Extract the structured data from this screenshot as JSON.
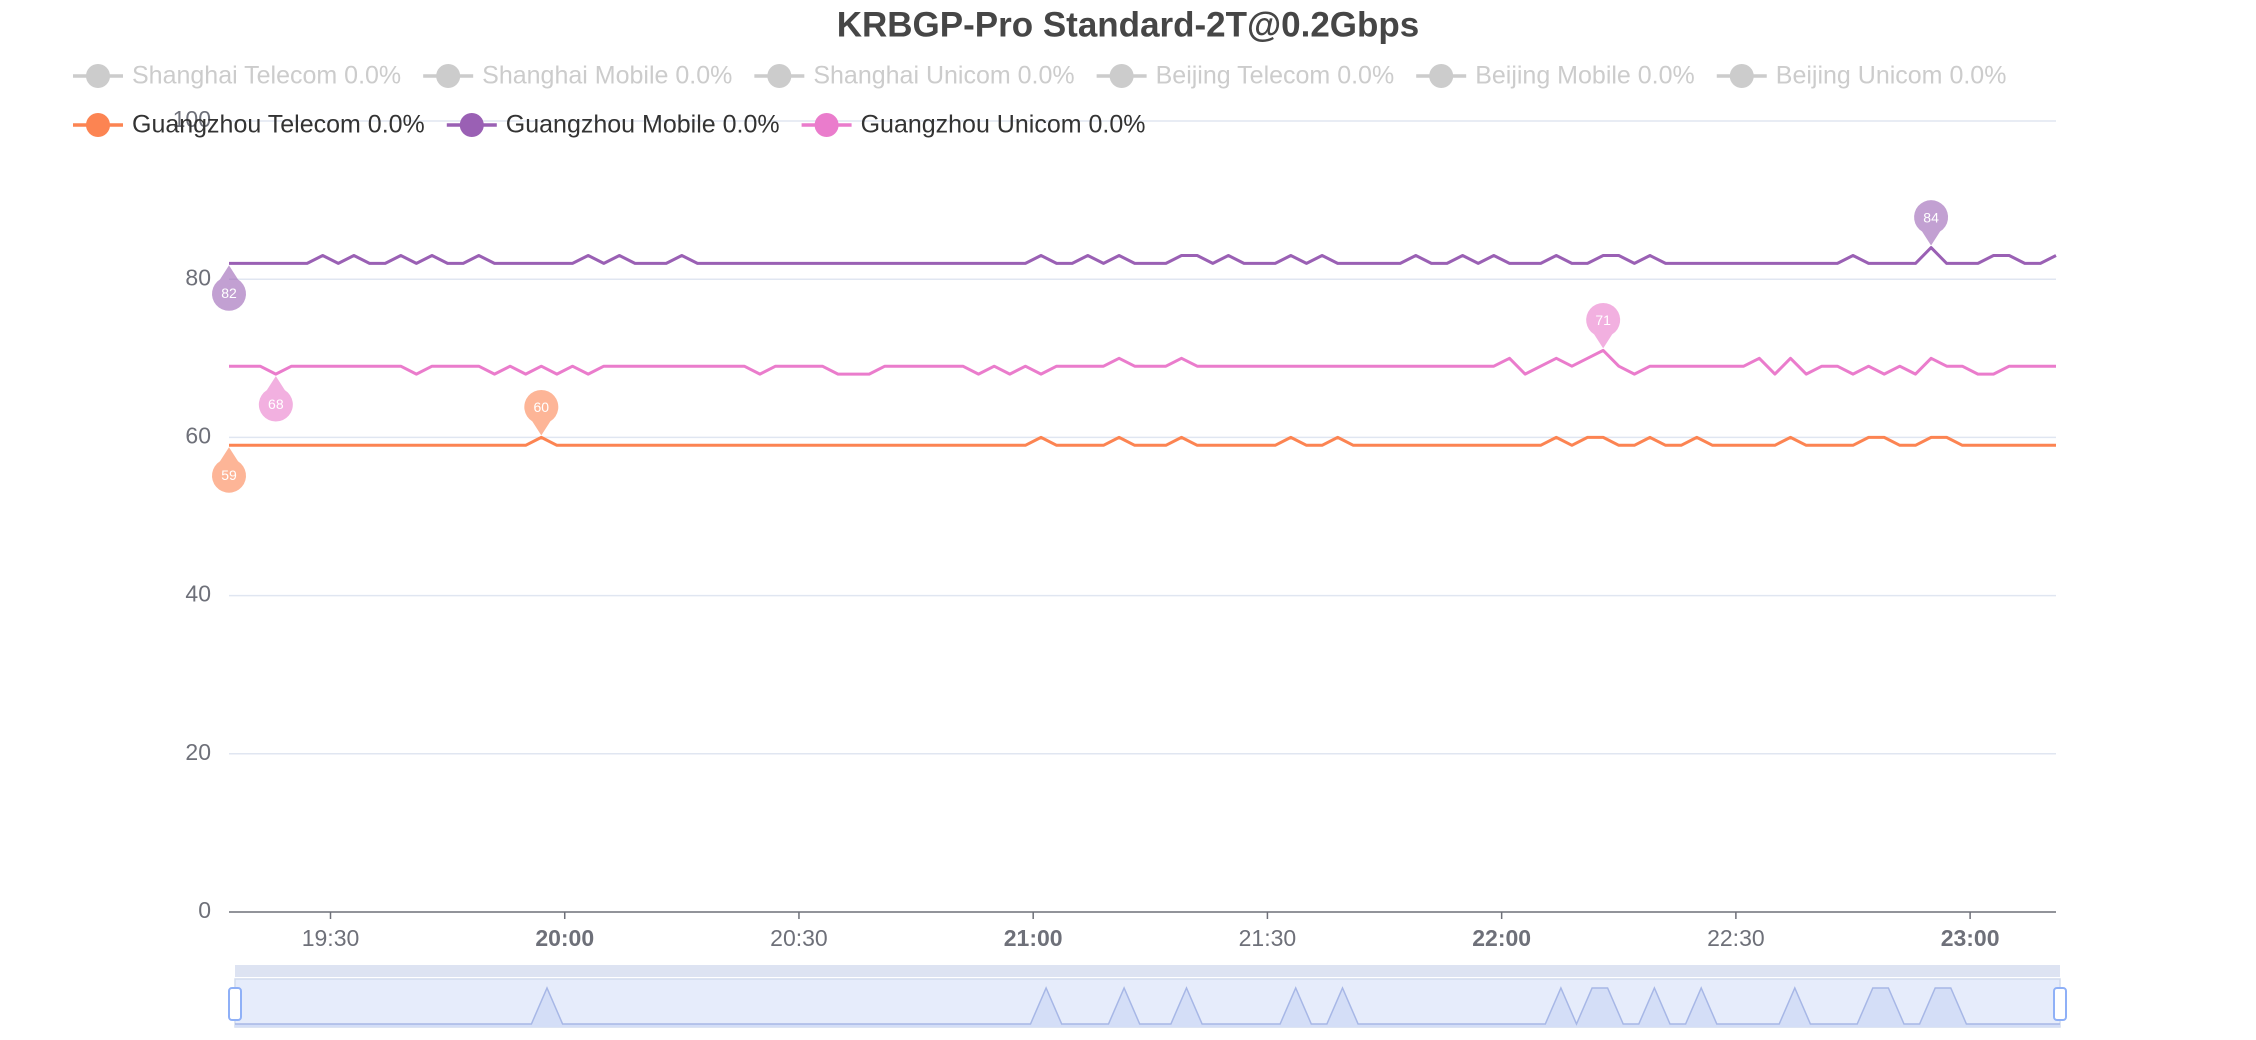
{
  "chart_data": {
    "type": "line",
    "title": "KRBGP-Pro Standard-2T@0.2Gbps",
    "x": [
      "19:17",
      "19:19",
      "19:21",
      "19:23",
      "19:25",
      "19:27",
      "19:29",
      "19:31",
      "19:33",
      "19:35",
      "19:37",
      "19:39",
      "19:41",
      "19:43",
      "19:45",
      "19:47",
      "19:49",
      "19:51",
      "19:53",
      "19:55",
      "19:57",
      "19:59",
      "20:01",
      "20:03",
      "20:05",
      "20:07",
      "20:09",
      "20:11",
      "20:13",
      "20:15",
      "20:17",
      "20:19",
      "20:21",
      "20:23",
      "20:25",
      "20:27",
      "20:29",
      "20:31",
      "20:33",
      "20:35",
      "20:37",
      "20:39",
      "20:41",
      "20:43",
      "20:45",
      "20:47",
      "20:49",
      "20:51",
      "20:53",
      "20:55",
      "20:57",
      "20:59",
      "21:01",
      "21:03",
      "21:05",
      "21:07",
      "21:09",
      "21:11",
      "21:13",
      "21:15",
      "21:17",
      "21:19",
      "21:21",
      "21:23",
      "21:25",
      "21:27",
      "21:29",
      "21:31",
      "21:33",
      "21:35",
      "21:37",
      "21:39",
      "21:41",
      "21:43",
      "21:45",
      "21:47",
      "21:49",
      "21:51",
      "21:53",
      "21:55",
      "21:57",
      "21:59",
      "22:01",
      "22:03",
      "22:05",
      "22:07",
      "22:09",
      "22:11",
      "22:13",
      "22:15",
      "22:17",
      "22:19",
      "22:21",
      "22:23",
      "22:25",
      "22:27",
      "22:29",
      "22:31",
      "22:33",
      "22:35",
      "22:37",
      "22:39",
      "22:41",
      "22:43",
      "22:45",
      "22:47",
      "22:49",
      "22:51",
      "22:53",
      "22:55",
      "22:57",
      "22:59",
      "23:01",
      "23:03",
      "23:05",
      "23:07",
      "23:09",
      "23:11"
    ],
    "xlim": [
      "19:17",
      "23:11"
    ],
    "xticks": [
      "19:30",
      "20:00",
      "20:30",
      "21:00",
      "21:30",
      "22:00",
      "22:30",
      "23:00"
    ],
    "ylim": [
      0,
      100
    ],
    "yticks": [
      0,
      20,
      40,
      60,
      80,
      100
    ],
    "grid": true,
    "series": [
      {
        "name": "Shanghai Telecom 0.0%",
        "color": "#5470c6",
        "visible": false
      },
      {
        "name": "Shanghai Mobile 0.0%",
        "color": "#91cc75",
        "visible": false
      },
      {
        "name": "Shanghai Unicom 0.0%",
        "color": "#fac858",
        "visible": false
      },
      {
        "name": "Beijing Telecom 0.0%",
        "color": "#ee6666",
        "visible": false
      },
      {
        "name": "Beijing Mobile 0.0%",
        "color": "#73c0de",
        "visible": false
      },
      {
        "name": "Beijing Unicom 0.0%",
        "color": "#3ba272",
        "visible": false
      },
      {
        "name": "Guangzhou Telecom 0.0%",
        "color": "#fc8452",
        "visible": true,
        "values": [
          59,
          59,
          59,
          59,
          59,
          59,
          59,
          59,
          59,
          59,
          59,
          59,
          59,
          59,
          59,
          59,
          59,
          59,
          59,
          59,
          60,
          59,
          59,
          59,
          59,
          59,
          59,
          59,
          59,
          59,
          59,
          59,
          59,
          59,
          59,
          59,
          59,
          59,
          59,
          59,
          59,
          59,
          59,
          59,
          59,
          59,
          59,
          59,
          59,
          59,
          59,
          59,
          60,
          59,
          59,
          59,
          59,
          60,
          59,
          59,
          59,
          60,
          59,
          59,
          59,
          59,
          59,
          59,
          60,
          59,
          59,
          60,
          59,
          59,
          59,
          59,
          59,
          59,
          59,
          59,
          59,
          59,
          59,
          59,
          59,
          60,
          59,
          60,
          60,
          59,
          59,
          60,
          59,
          59,
          60,
          59,
          59,
          59,
          59,
          59,
          60,
          59,
          59,
          59,
          59,
          60,
          60,
          59,
          59,
          60,
          60,
          59,
          59,
          59,
          59,
          59,
          59,
          59
        ],
        "mark_points": [
          {
            "x": "19:57",
            "value": 60,
            "kind": "max"
          },
          {
            "x": "19:17",
            "value": 59,
            "kind": "min"
          }
        ]
      },
      {
        "name": "Guangzhou Mobile 0.0%",
        "color": "#9a60b4",
        "visible": true,
        "values": [
          82,
          82,
          82,
          82,
          82,
          82,
          83,
          82,
          83,
          82,
          82,
          83,
          82,
          83,
          82,
          82,
          83,
          82,
          82,
          82,
          82,
          82,
          82,
          83,
          82,
          83,
          82,
          82,
          82,
          83,
          82,
          82,
          82,
          82,
          82,
          82,
          82,
          82,
          82,
          82,
          82,
          82,
          82,
          82,
          82,
          82,
          82,
          82,
          82,
          82,
          82,
          82,
          83,
          82,
          82,
          83,
          82,
          83,
          82,
          82,
          82,
          83,
          83,
          82,
          83,
          82,
          82,
          82,
          83,
          82,
          83,
          82,
          82,
          82,
          82,
          82,
          83,
          82,
          82,
          83,
          82,
          83,
          82,
          82,
          82,
          83,
          82,
          82,
          83,
          83,
          82,
          83,
          82,
          82,
          82,
          82,
          82,
          82,
          82,
          82,
          82,
          82,
          82,
          82,
          83,
          82,
          82,
          82,
          82,
          84,
          82,
          82,
          82,
          83,
          83,
          82,
          82,
          83
        ],
        "mark_points": [
          {
            "x": "22:55",
            "value": 84,
            "kind": "max"
          },
          {
            "x": "19:17",
            "value": 82,
            "kind": "min"
          }
        ]
      },
      {
        "name": "Guangzhou Unicom 0.0%",
        "color": "#ea7ccc",
        "visible": true,
        "values": [
          69,
          69,
          69,
          68,
          69,
          69,
          69,
          69,
          69,
          69,
          69,
          69,
          68,
          69,
          69,
          69,
          69,
          68,
          69,
          68,
          69,
          68,
          69,
          68,
          69,
          69,
          69,
          69,
          69,
          69,
          69,
          69,
          69,
          69,
          68,
          69,
          69,
          69,
          69,
          68,
          68,
          68,
          69,
          69,
          69,
          69,
          69,
          69,
          68,
          69,
          68,
          69,
          68,
          69,
          69,
          69,
          69,
          70,
          69,
          69,
          69,
          70,
          69,
          69,
          69,
          69,
          69,
          69,
          69,
          69,
          69,
          69,
          69,
          69,
          69,
          69,
          69,
          69,
          69,
          69,
          69,
          69,
          70,
          68,
          69,
          70,
          69,
          70,
          71,
          69,
          68,
          69,
          69,
          69,
          69,
          69,
          69,
          69,
          70,
          68,
          70,
          68,
          69,
          69,
          68,
          69,
          68,
          69,
          68,
          70,
          69,
          69,
          68,
          68,
          69,
          69,
          69,
          69
        ],
        "mark_points": [
          {
            "x": "22:13",
            "value": 71,
            "kind": "max"
          },
          {
            "x": "19:23",
            "value": 68,
            "kind": "min"
          }
        ]
      }
    ]
  }
}
